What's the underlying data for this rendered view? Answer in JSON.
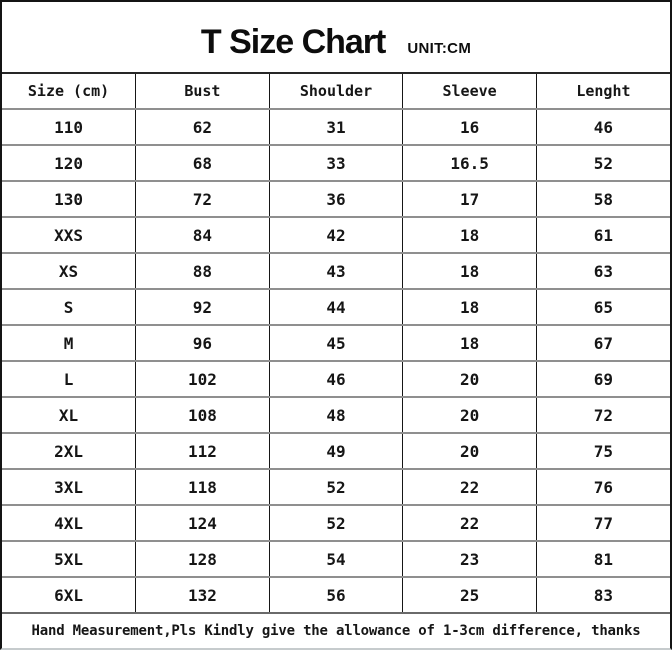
{
  "page": {
    "title": "T Size Chart",
    "unit_label": "UNIT:CM",
    "footer_note": "Hand Measurement,Pls Kindly give the allowance of 1-3cm difference, thanks"
  },
  "table": {
    "column_keys": [
      "size",
      "bust",
      "shoulder",
      "sleeve",
      "length"
    ],
    "columns": [
      "Size (cm)",
      "Bust",
      "Shoulder",
      "Sleeve",
      "Lenght"
    ],
    "rows": [
      [
        "110",
        "62",
        "31",
        "16",
        "46"
      ],
      [
        "120",
        "68",
        "33",
        "16.5",
        "52"
      ],
      [
        "130",
        "72",
        "36",
        "17",
        "58"
      ],
      [
        "XXS",
        "84",
        "42",
        "18",
        "61"
      ],
      [
        "XS",
        "88",
        "43",
        "18",
        "63"
      ],
      [
        "S",
        "92",
        "44",
        "18",
        "65"
      ],
      [
        "M",
        "96",
        "45",
        "18",
        "67"
      ],
      [
        "L",
        "102",
        "46",
        "20",
        "69"
      ],
      [
        "XL",
        "108",
        "48",
        "20",
        "72"
      ],
      [
        "2XL",
        "112",
        "49",
        "20",
        "75"
      ],
      [
        "3XL",
        "118",
        "52",
        "22",
        "76"
      ],
      [
        "4XL",
        "124",
        "52",
        "22",
        "77"
      ],
      [
        "5XL",
        "128",
        "54",
        "23",
        "81"
      ],
      [
        "6XL",
        "132",
        "56",
        "25",
        "83"
      ]
    ]
  },
  "colors": {
    "background": "#ffffff",
    "text": "#161616",
    "outer_border": "#141414",
    "grid_vertical": "#161616",
    "grid_horizontal": "#8f8f8f",
    "bottom_edge": "#c6cbcd"
  }
}
